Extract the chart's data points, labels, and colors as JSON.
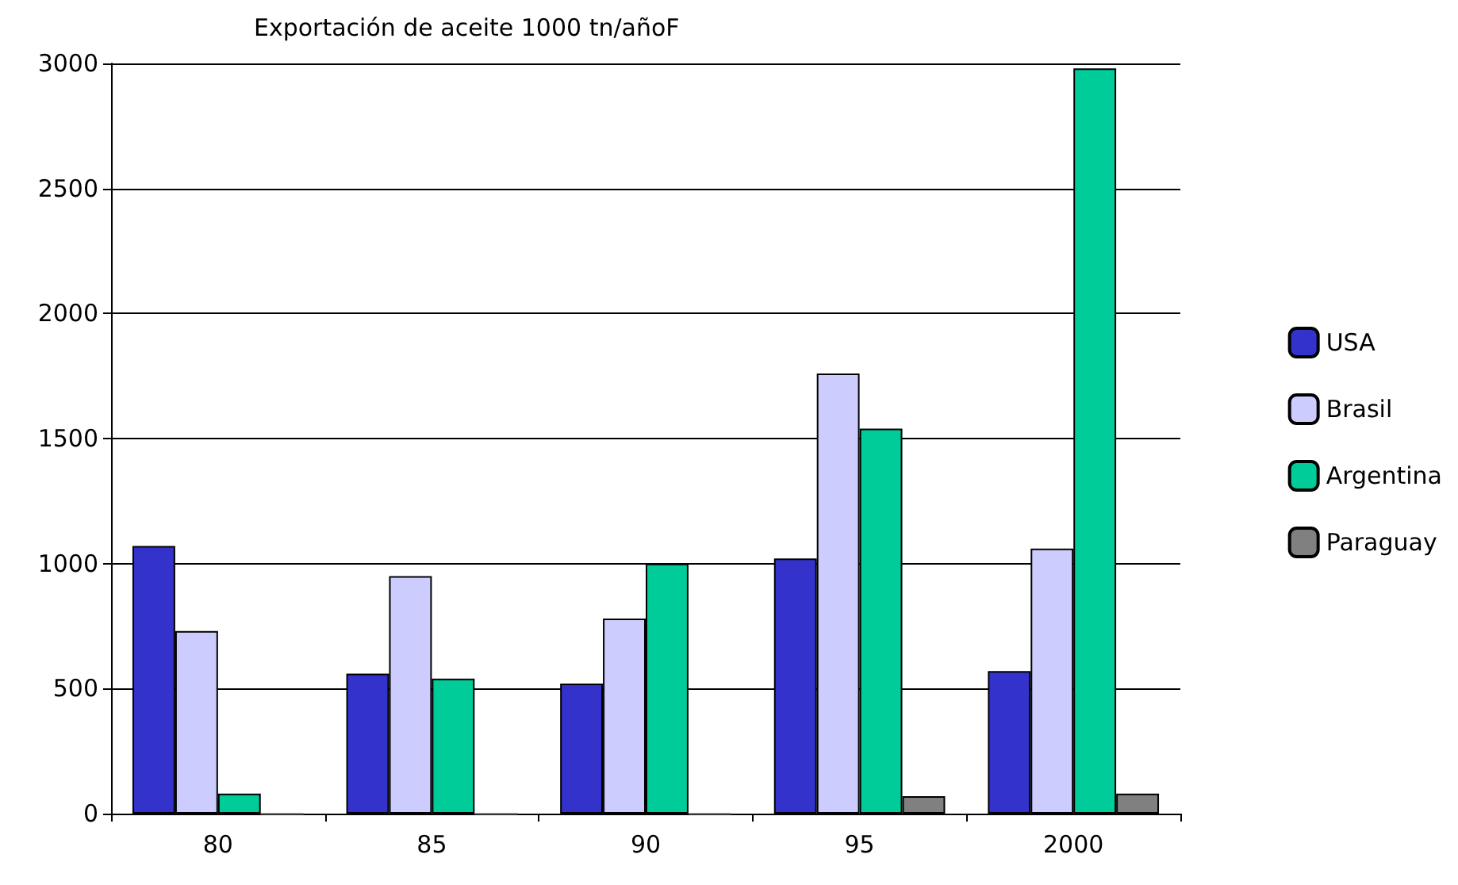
{
  "chart_data": {
    "type": "bar",
    "title": "Exportación de aceite 1000 tn/añoF",
    "categories": [
      "80",
      "85",
      "90",
      "95",
      "2000"
    ],
    "series": [
      {
        "name": "USA",
        "color": "#3333cc",
        "values": [
          1070,
          560,
          520,
          1020,
          570
        ]
      },
      {
        "name": "Brasil",
        "color": "#ccccff",
        "values": [
          730,
          950,
          780,
          1760,
          1060
        ]
      },
      {
        "name": "Argentina",
        "color": "#00cc99",
        "values": [
          80,
          540,
          1000,
          1540,
          2980
        ]
      },
      {
        "name": "Paraguay",
        "color": "#808080",
        "values": [
          0,
          0,
          0,
          70,
          80
        ]
      }
    ],
    "ylim": [
      0,
      3000
    ],
    "yticks": [
      0,
      500,
      1000,
      1500,
      2000,
      2500,
      3000
    ],
    "grid": "y",
    "legend": "right"
  }
}
